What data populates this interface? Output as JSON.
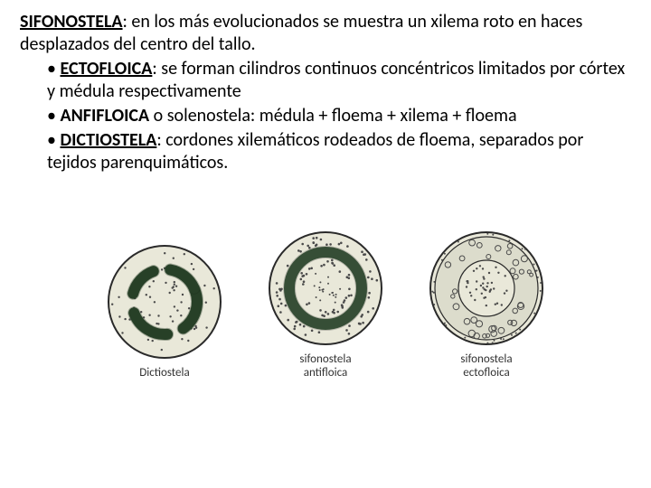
{
  "text": {
    "main_term": "SIFONOSTELA",
    "main_rest": ": en los más evolucionados se muestra un xilema roto en haces desplazados del centro del tallo.",
    "b1_term": "ECTOFLOICA",
    "b1_rest": ": se forman cilindros continuos concéntricos limitados por córtex y médula respectivamente",
    "b2_term": "ANFIFLOICA",
    "b2_rest": " o solenostela: médula + floema + xilema + floema",
    "b3_term": "DICTIOSTELA",
    "b3_rest": ": cordones xilemáticos rodeados de floema, separados por tejidos parenquimáticos."
  },
  "figures": {
    "bg": "#e9e8d9",
    "stroke": "#2a2a2a",
    "xylem_fill": "#2f4a2f",
    "xylem_stroke": "#1a2e1a",
    "ring_fill": "#dcdccc",
    "dot_fill": "#4a4a4a",
    "band_dark": "#3a5a3a",
    "diagram_size": 132,
    "f1": {
      "caption": "Dictiostela"
    },
    "f2": {
      "caption_l1": "sifonostela",
      "caption_l2": "antifloica"
    },
    "f3": {
      "caption_l1": "sifonostela",
      "caption_l2": "ectofloica"
    }
  }
}
